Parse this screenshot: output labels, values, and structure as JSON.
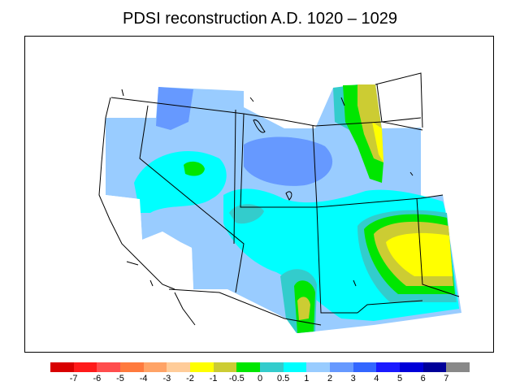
{
  "title": "PDSI reconstruction A.D. 1020 – 1029",
  "legend": {
    "colors": [
      "#d80000",
      "#ff1a1a",
      "#ff4d4d",
      "#ff7a3d",
      "#ffa366",
      "#ffcc99",
      "#ffff00",
      "#cccc33",
      "#00e600",
      "#33cccc",
      "#00ffff",
      "#99ccff",
      "#6699ff",
      "#3366ff",
      "#1a1aff",
      "#0000d9",
      "#000099",
      "#888888"
    ],
    "labels": [
      "-7",
      "-6",
      "-5",
      "-4",
      "-3",
      "-2",
      "-1",
      "-0.5",
      "0",
      "0.5",
      "1",
      "2",
      "3",
      "4",
      "5",
      "6",
      "7"
    ]
  }
}
